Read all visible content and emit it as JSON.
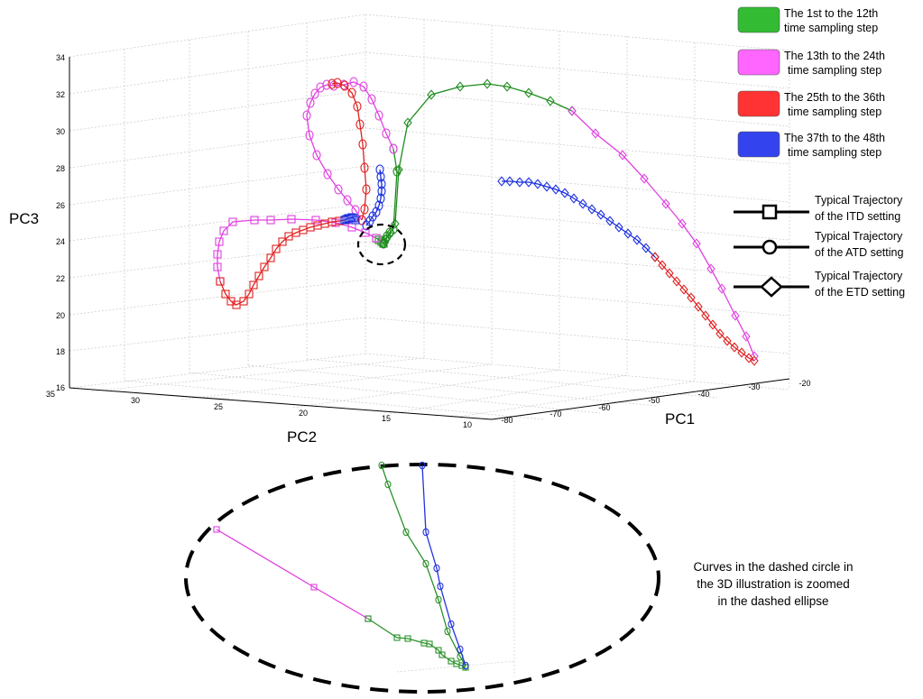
{
  "chart_data": {
    "type": "line",
    "projection": "3d",
    "axes": {
      "x": {
        "label": "PC1",
        "ticks": [
          "-80",
          "-70",
          "-60",
          "-50",
          "-40",
          "-30",
          "-20"
        ]
      },
      "y": {
        "label": "PC2",
        "ticks": [
          "35",
          "30",
          "25",
          "20",
          "15",
          "10"
        ]
      },
      "z": {
        "label": "PC3",
        "ticks": [
          "16",
          "18",
          "20",
          "22",
          "24",
          "26",
          "28",
          "30",
          "32",
          "34"
        ]
      }
    },
    "grid": true,
    "phases": [
      {
        "name": "The 1st to the 12th time sampling step",
        "line1": "The 1st to the 12th",
        "line2": "time sampling step",
        "color": "#33bb33"
      },
      {
        "name": "The 13th to the 24th time sampling step",
        "line1": "The 13th to the 24th",
        "line2": "time sampling step",
        "color": "#ff66ff"
      },
      {
        "name": "The 25th to the 36th time sampling step",
        "line1": "The 25th to the 36th",
        "line2": "time sampling step",
        "color": "#ff3333"
      },
      {
        "name": "The 37th to the 48th time sampling step",
        "line1": "The 37th to the 48th",
        "line2": "time sampling step",
        "color": "#3344ee"
      }
    ],
    "series": [
      {
        "name": "Typical Trajectory of the ITD setting",
        "marker": "square",
        "line1": "Typical Trajectory",
        "line2": "of the ITD setting"
      },
      {
        "name": "Typical Trajectory of the ATD setting",
        "marker": "circle",
        "line1": "Typical Trajectory",
        "line2": "of the ATD setting"
      },
      {
        "name": "Typical Trajectory of the ETD setting",
        "marker": "diamond",
        "line1": "Typical Trajectory",
        "line2": "of the ETD setting"
      }
    ],
    "annotation": {
      "line1": "Curves in the dashed circle in",
      "line2": "the 3D illustration is zoomed",
      "line3": "in the dashed ellipse"
    }
  },
  "colors": {
    "green": "#1e8c1e",
    "magenta": "#e040e0",
    "red": "#e02020",
    "blue": "#1a2ee0"
  }
}
